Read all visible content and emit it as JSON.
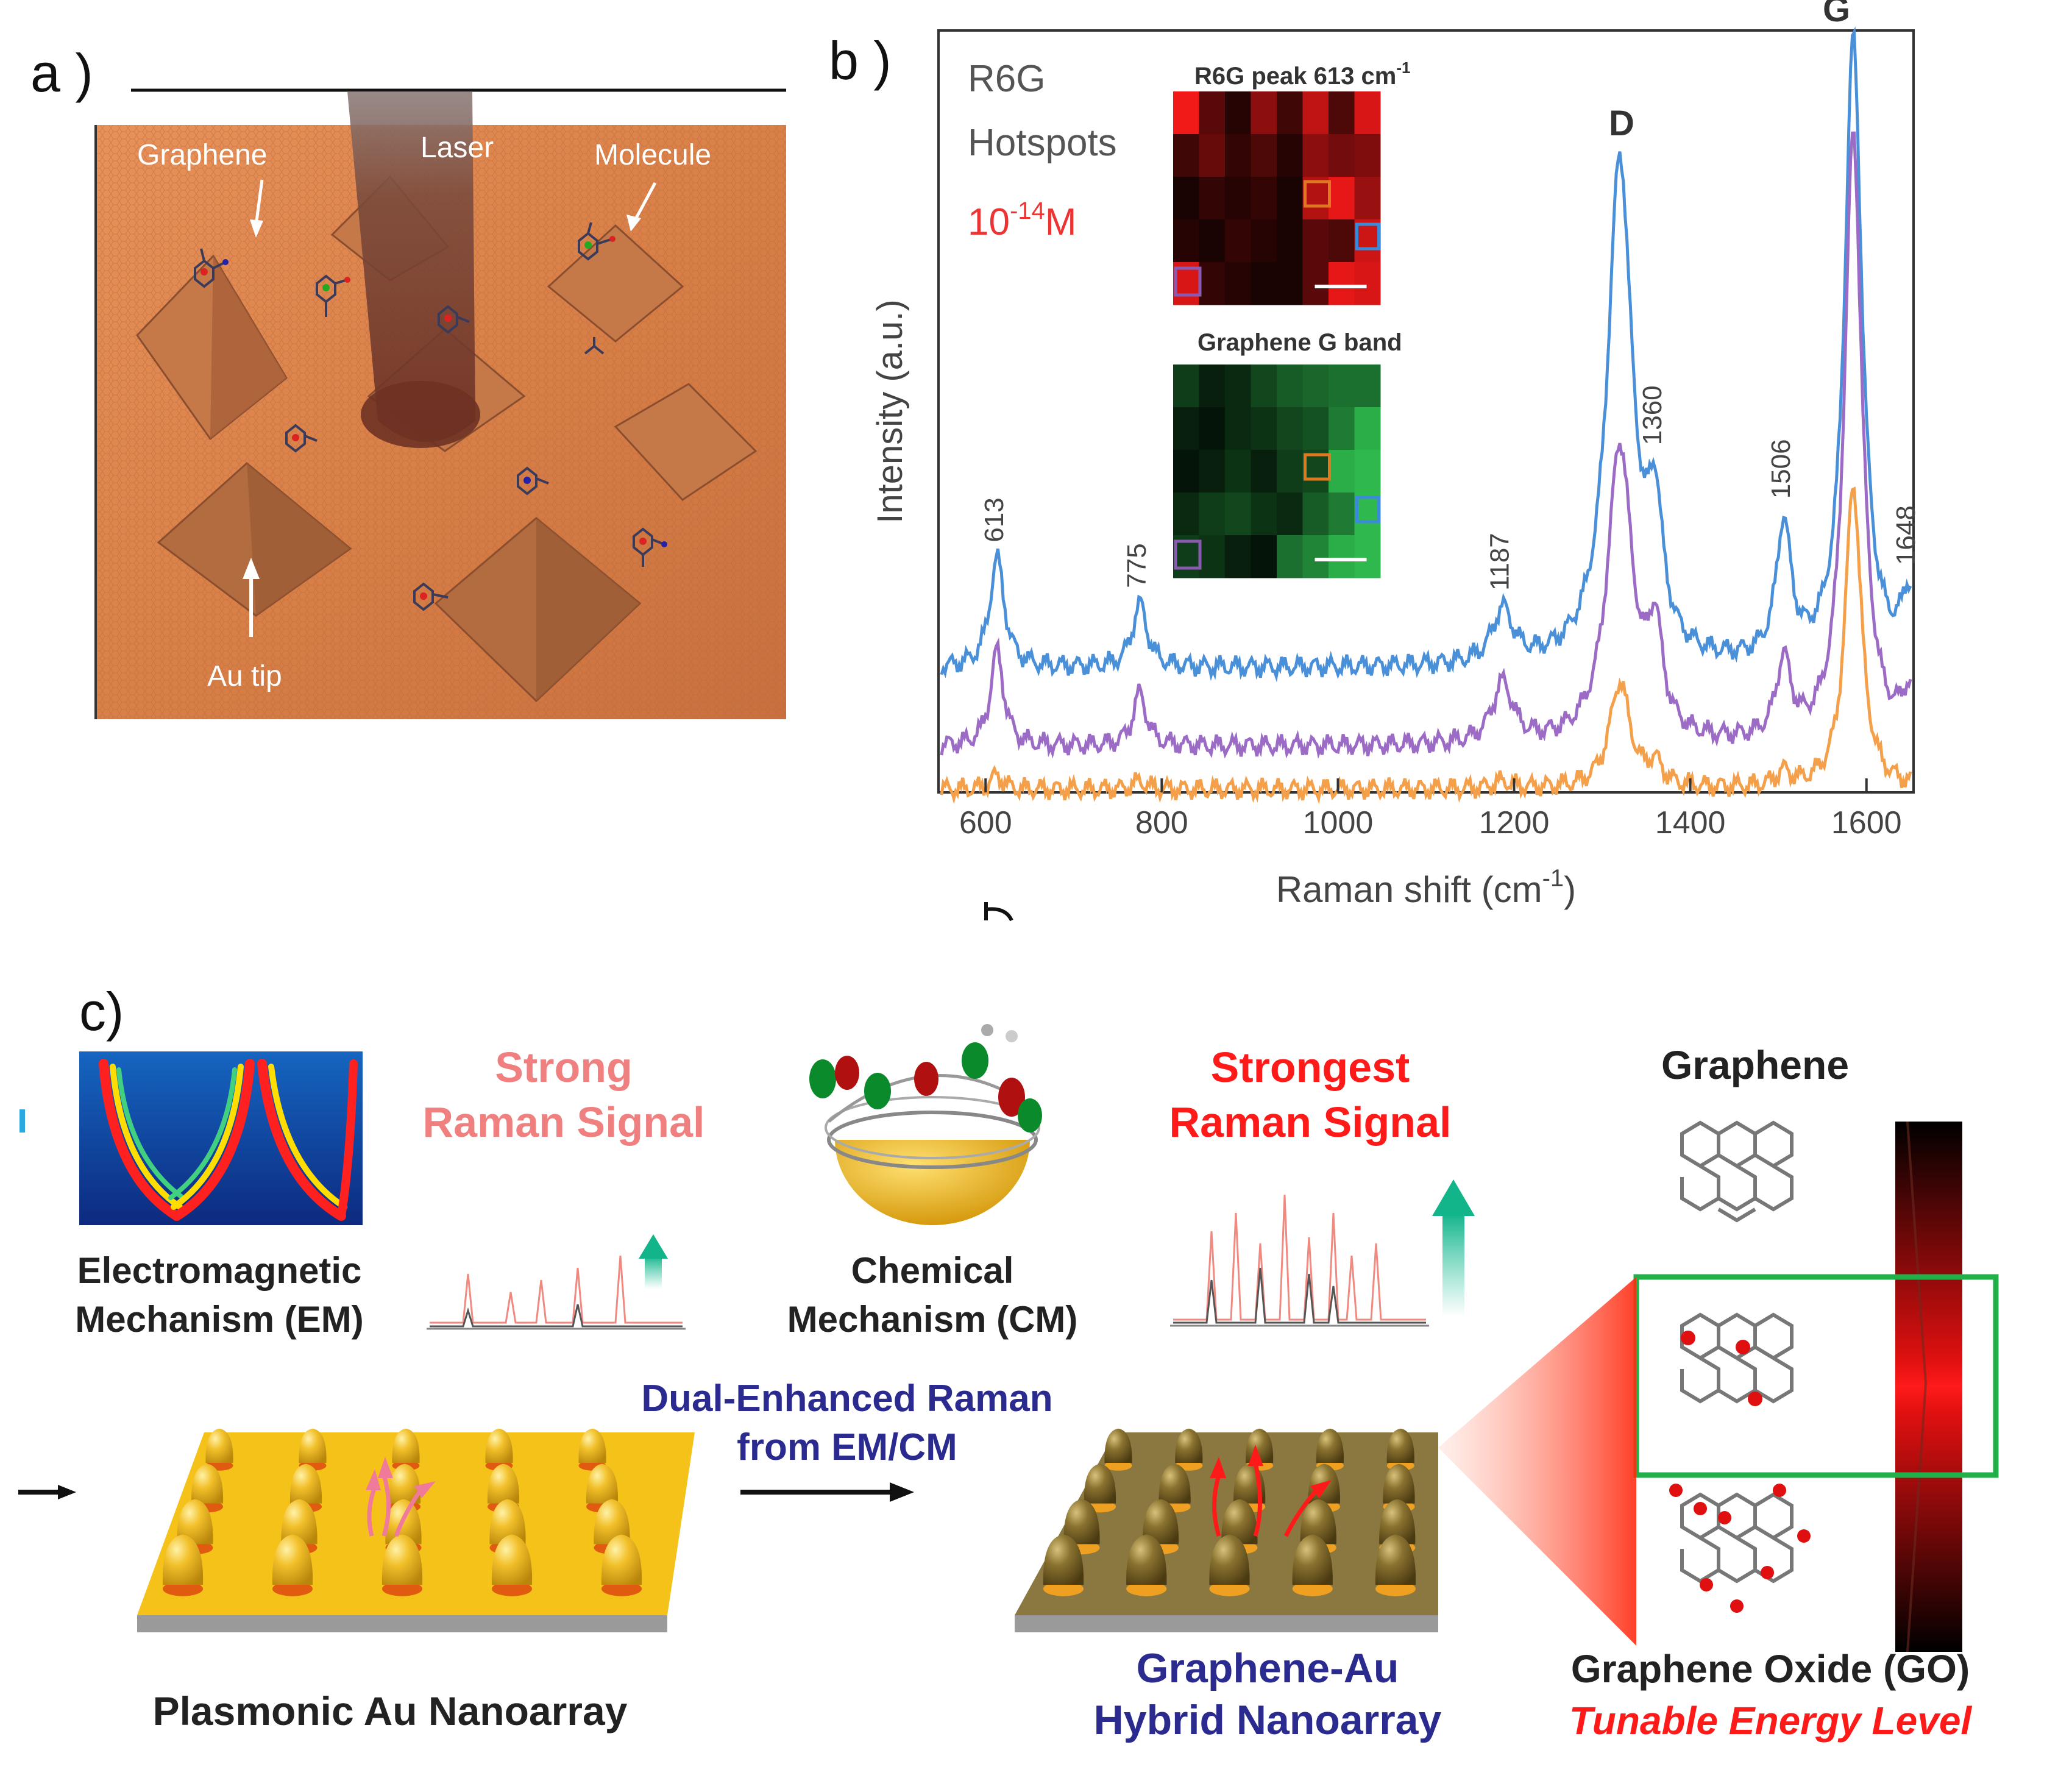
{
  "panels": {
    "a": {
      "label": "a )",
      "graphene": "Graphene",
      "laser": "Laser",
      "molecule": "Molecule",
      "au_tip": "Au tip"
    },
    "b": {
      "label": "b )",
      "sample": "R6G",
      "hotspots": "Hotspots",
      "conc_base": "10",
      "conc_exp": "-14",
      "conc_unit": "M"
    },
    "c": {
      "label": "c)",
      "em_line1": "Electromagnetic",
      "em_line2": "Mechanism (EM)",
      "strong_line1": "Strong",
      "strong_line2": "Raman Signal",
      "cm_line1": "Chemical",
      "cm_line2": "Mechanism (CM)",
      "strongest_line1": "Strongest",
      "strongest_line2": "Raman Signal",
      "graphene": "Graphene",
      "dual_line1": "Dual-Enhanced Raman",
      "dual_line2": "from EM/CM",
      "plasmonic": "Plasmonic Au Nanoarray",
      "hybrid_line1": "Graphene-Au",
      "hybrid_line2": "Hybrid Nanoarray",
      "go": "Graphene Oxide (GO)",
      "tunable": "Tunable Energy Level"
    }
  },
  "chart_data": {
    "type": "line",
    "xlabel": "Raman shift (cm",
    "xlabel_exp": "-1",
    "xlabel_end": ")",
    "ylabel": "Intensity (a.u.)",
    "xlim": [
      550,
      1650
    ],
    "ylim": [
      0,
      1.05
    ],
    "x_ticks": [
      600,
      800,
      1000,
      1200,
      1400,
      1600
    ],
    "peak_labels": [
      "613",
      "775",
      "1187",
      "1360",
      "1506",
      "1648"
    ],
    "band_labels": {
      "D": "D",
      "G": "G"
    },
    "series": [
      {
        "name": "blue",
        "color": "#4a90d9",
        "baseline": 0.17,
        "peaks": [
          [
            613,
            0.155,
            10
          ],
          [
            775,
            0.09,
            10
          ],
          [
            1187,
            0.075,
            14
          ],
          [
            1320,
            0.71,
            17
          ],
          [
            1360,
            0.18,
            10
          ],
          [
            1506,
            0.19,
            10
          ],
          [
            1585,
            0.88,
            12
          ],
          [
            1648,
            0.09,
            10
          ]
        ]
      },
      {
        "name": "purple",
        "color": "#9b6bc6",
        "baseline": 0.06,
        "peaks": [
          [
            613,
            0.135,
            9
          ],
          [
            775,
            0.075,
            9
          ],
          [
            1187,
            0.085,
            14
          ],
          [
            1320,
            0.42,
            17
          ],
          [
            1360,
            0.14,
            10
          ],
          [
            1506,
            0.11,
            10
          ],
          [
            1585,
            0.86,
            12
          ],
          [
            1648,
            0.06,
            10
          ]
        ]
      },
      {
        "name": "orange",
        "color": "#f4a04a",
        "baseline": 0.0,
        "peaks": [
          [
            613,
            0.02,
            8
          ],
          [
            775,
            0.012,
            8
          ],
          [
            1187,
            0.01,
            12
          ],
          [
            1320,
            0.15,
            14
          ],
          [
            1360,
            0.03,
            10
          ],
          [
            1506,
            0.02,
            10
          ],
          [
            1585,
            0.43,
            11
          ]
        ]
      }
    ],
    "insets": [
      {
        "title": "R6G peak 613 cm",
        "title_exp": "-1",
        "color": "#ff1a1a",
        "grid": [
          [
            0.95,
            0.35,
            0.15,
            0.55,
            0.25,
            0.75,
            0.3,
            0.85
          ],
          [
            0.25,
            0.4,
            0.2,
            0.3,
            0.15,
            0.55,
            0.45,
            0.5
          ],
          [
            0.1,
            0.2,
            0.15,
            0.2,
            0.1,
            0.7,
            0.9,
            0.6
          ],
          [
            0.15,
            0.1,
            0.2,
            0.15,
            0.1,
            0.35,
            0.3,
            0.8
          ],
          [
            0.85,
            0.2,
            0.15,
            0.1,
            0.1,
            0.35,
            0.9,
            0.85
          ]
        ]
      },
      {
        "title": "Graphene G band",
        "color": "#33cc55",
        "grid": [
          [
            0.3,
            0.15,
            0.2,
            0.35,
            0.45,
            0.5,
            0.55,
            0.55
          ],
          [
            0.15,
            0.1,
            0.2,
            0.25,
            0.35,
            0.4,
            0.6,
            0.85
          ],
          [
            0.1,
            0.15,
            0.25,
            0.15,
            0.3,
            0.35,
            0.85,
            0.9
          ],
          [
            0.2,
            0.3,
            0.35,
            0.25,
            0.2,
            0.45,
            0.6,
            0.9
          ],
          [
            0.3,
            0.25,
            0.15,
            0.1,
            0.55,
            0.65,
            0.85,
            0.9
          ]
        ]
      }
    ]
  }
}
